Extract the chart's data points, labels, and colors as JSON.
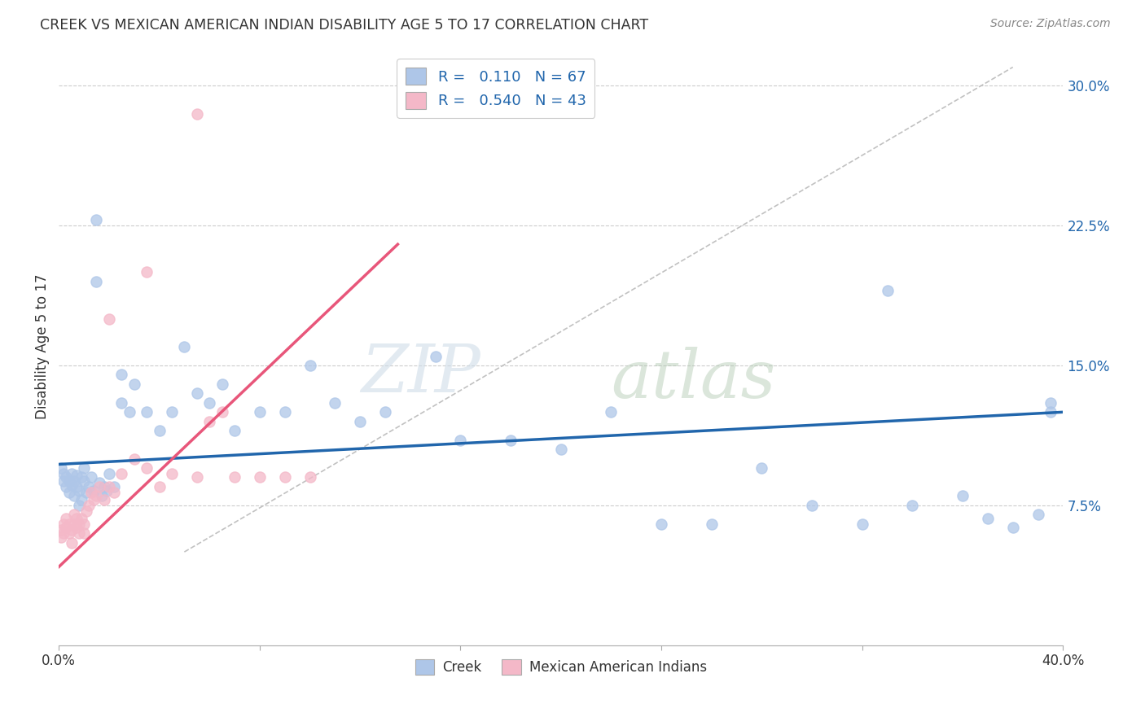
{
  "title": "CREEK VS MEXICAN AMERICAN INDIAN DISABILITY AGE 5 TO 17 CORRELATION CHART",
  "source": "Source: ZipAtlas.com",
  "ylabel": "Disability Age 5 to 17",
  "xlim": [
    0.0,
    0.4
  ],
  "ylim": [
    0.0,
    0.32
  ],
  "creek_R": "0.110",
  "creek_N": "67",
  "mai_R": "0.540",
  "mai_N": "43",
  "creek_fill_color": "#aec6e8",
  "mai_fill_color": "#f4b8c8",
  "creek_line_color": "#2166ac",
  "mai_line_color": "#e8567a",
  "diagonal_color": "#bbbbbb",
  "background_color": "#ffffff",
  "creek_x": [
    0.001,
    0.002,
    0.002,
    0.003,
    0.003,
    0.004,
    0.004,
    0.005,
    0.005,
    0.006,
    0.006,
    0.007,
    0.007,
    0.008,
    0.008,
    0.009,
    0.009,
    0.01,
    0.01,
    0.011,
    0.012,
    0.013,
    0.014,
    0.015,
    0.016,
    0.017,
    0.018,
    0.019,
    0.02,
    0.022,
    0.025,
    0.028,
    0.03,
    0.035,
    0.04,
    0.045,
    0.05,
    0.055,
    0.06,
    0.065,
    0.07,
    0.08,
    0.09,
    0.1,
    0.11,
    0.12,
    0.13,
    0.15,
    0.16,
    0.18,
    0.2,
    0.22,
    0.24,
    0.26,
    0.28,
    0.3,
    0.32,
    0.34,
    0.36,
    0.37,
    0.38,
    0.39,
    0.395,
    0.015,
    0.025,
    0.33,
    0.395
  ],
  "creek_y": [
    0.095,
    0.088,
    0.092,
    0.085,
    0.09,
    0.082,
    0.088,
    0.092,
    0.086,
    0.08,
    0.088,
    0.085,
    0.091,
    0.075,
    0.083,
    0.09,
    0.078,
    0.088,
    0.095,
    0.082,
    0.085,
    0.09,
    0.083,
    0.228,
    0.087,
    0.08,
    0.085,
    0.083,
    0.092,
    0.085,
    0.13,
    0.125,
    0.14,
    0.125,
    0.115,
    0.125,
    0.16,
    0.135,
    0.13,
    0.14,
    0.115,
    0.125,
    0.125,
    0.15,
    0.13,
    0.12,
    0.125,
    0.155,
    0.11,
    0.11,
    0.105,
    0.125,
    0.065,
    0.065,
    0.095,
    0.075,
    0.065,
    0.075,
    0.08,
    0.068,
    0.063,
    0.07,
    0.13,
    0.195,
    0.145,
    0.19,
    0.125
  ],
  "mai_x": [
    0.001,
    0.001,
    0.002,
    0.002,
    0.003,
    0.003,
    0.004,
    0.004,
    0.005,
    0.005,
    0.006,
    0.006,
    0.007,
    0.007,
    0.008,
    0.008,
    0.009,
    0.01,
    0.01,
    0.011,
    0.012,
    0.013,
    0.014,
    0.015,
    0.016,
    0.018,
    0.02,
    0.022,
    0.025,
    0.03,
    0.035,
    0.04,
    0.045,
    0.055,
    0.06,
    0.065,
    0.07,
    0.08,
    0.09,
    0.1,
    0.02,
    0.035,
    0.055
  ],
  "mai_y": [
    0.058,
    0.062,
    0.065,
    0.06,
    0.063,
    0.068,
    0.06,
    0.065,
    0.055,
    0.062,
    0.065,
    0.07,
    0.063,
    0.068,
    0.06,
    0.065,
    0.068,
    0.06,
    0.065,
    0.072,
    0.075,
    0.082,
    0.078,
    0.08,
    0.085,
    0.078,
    0.085,
    0.082,
    0.092,
    0.1,
    0.095,
    0.085,
    0.092,
    0.09,
    0.12,
    0.125,
    0.09,
    0.09,
    0.09,
    0.09,
    0.175,
    0.2,
    0.285
  ]
}
